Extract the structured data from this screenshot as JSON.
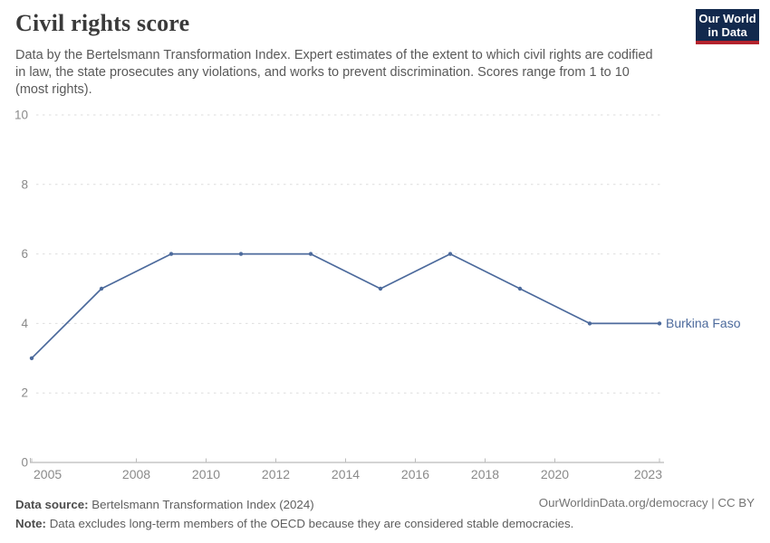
{
  "header": {
    "title": "Civil rights score",
    "subtitle_lines": [
      "Data by the Bertelsmann Transformation Index. Expert estimates of the extent to which civil rights are codified",
      "in law, the state prosecutes any violations, and works to prevent discrimination. Scores range from 1 to 10",
      "(most rights)."
    ]
  },
  "logo": {
    "line1": "Our World",
    "line2": "in Data",
    "bg_color": "#12294d",
    "bar_color": "#b4232d"
  },
  "chart_data": {
    "type": "line",
    "title": "Civil rights score",
    "x": [
      2005,
      2007,
      2009,
      2011,
      2013,
      2015,
      2017,
      2019,
      2021,
      2023
    ],
    "series": [
      {
        "name": "Burkina Faso",
        "color": "#4c6a9c",
        "values": [
          3,
          5,
          6,
          6,
          6,
          5,
          6,
          5,
          4,
          4
        ]
      }
    ],
    "xticks": [
      2005,
      2008,
      2010,
      2012,
      2014,
      2016,
      2018,
      2020,
      2023
    ],
    "yticks": [
      0,
      2,
      4,
      6,
      8,
      10
    ],
    "xlim": [
      2005,
      2023
    ],
    "ylim": [
      0,
      10
    ],
    "grid": "horizontal-dashed",
    "legend_position": "end-of-line-label"
  },
  "axis_colors": {
    "grid": "#dedede",
    "axis_line": "#a9a9a9",
    "tick": "#bcbcbc",
    "tick_text": "#8a8a8a"
  },
  "footer": {
    "source_label": "Data source:",
    "source_text": "Bertelsmann Transformation Index (2024)",
    "note_label": "Note:",
    "note_text": "Data excludes long-term members of the OECD because they are considered stable democracies.",
    "credit": "OurWorldinData.org/democracy | CC BY"
  }
}
